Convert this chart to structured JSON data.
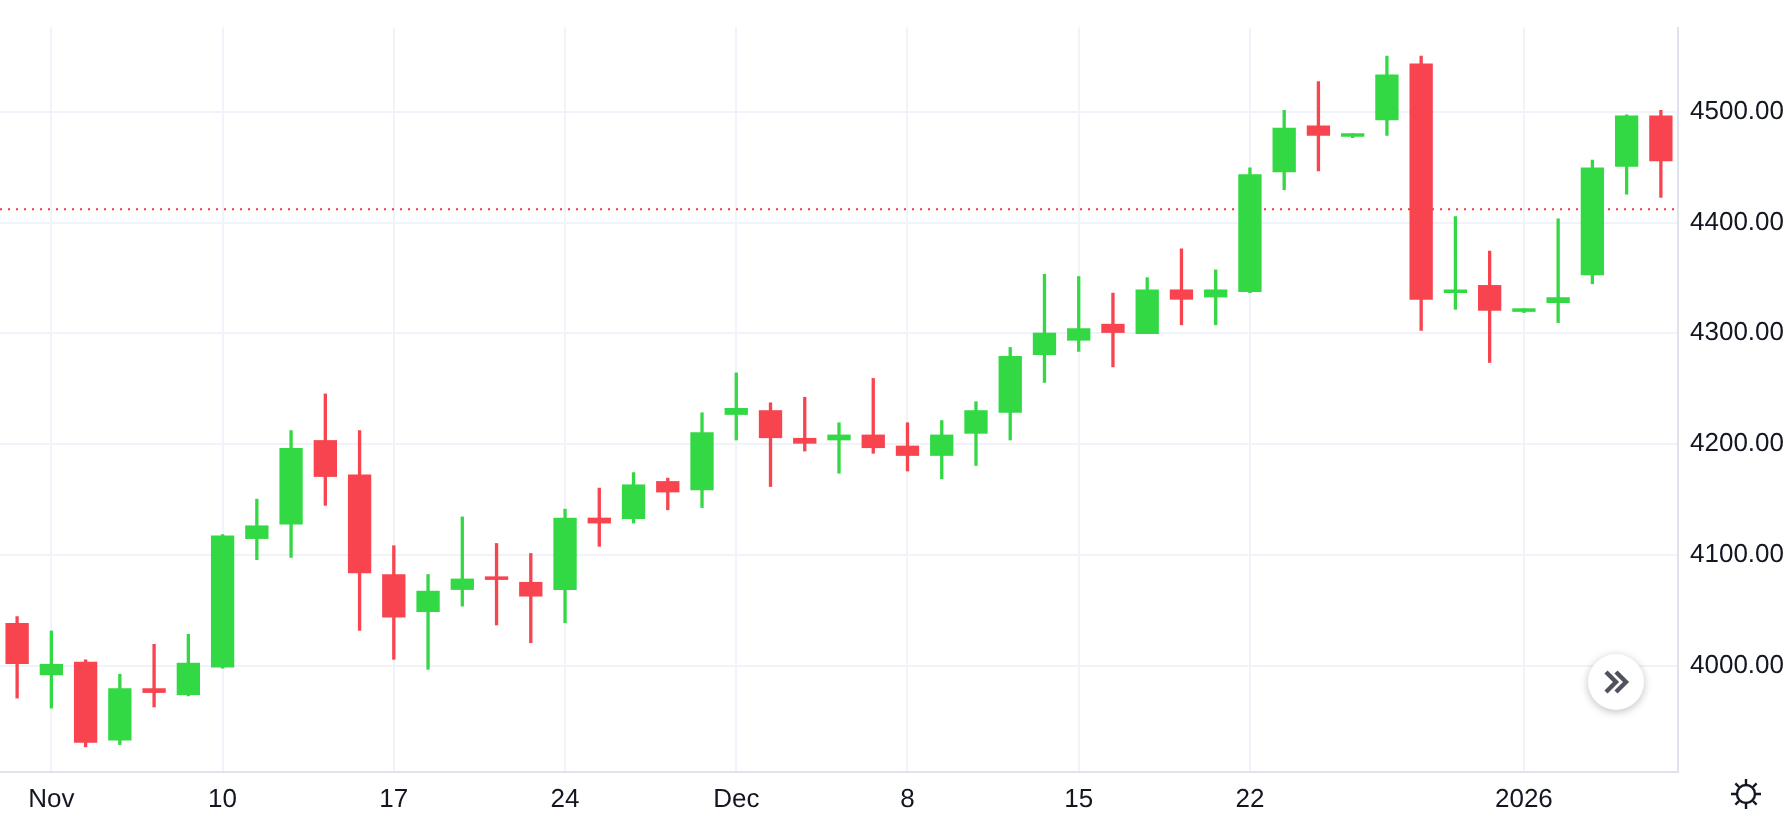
{
  "chart_data": {
    "type": "candlestick",
    "categories": [
      null,
      "Nov",
      null,
      null,
      null,
      null,
      "10",
      null,
      null,
      null,
      null,
      "17",
      null,
      null,
      null,
      null,
      "24",
      null,
      null,
      null,
      null,
      "Dec",
      null,
      null,
      null,
      null,
      "8",
      null,
      null,
      null,
      null,
      "15",
      null,
      null,
      null,
      null,
      "22",
      null,
      null,
      null,
      null,
      null,
      null,
      null,
      "2026",
      null,
      null,
      null,
      null
    ],
    "ohlc": [
      [
        4038,
        4044,
        3971,
        4002
      ],
      [
        3992,
        4031,
        3962,
        4001
      ],
      [
        4003,
        4005,
        3927,
        3931
      ],
      [
        3933,
        3992,
        3929,
        3979
      ],
      [
        3979,
        4019,
        3963,
        3976
      ],
      [
        3974,
        4028,
        3973,
        4002
      ],
      [
        3999,
        4118,
        3998,
        4117
      ],
      [
        4115,
        4150,
        4096,
        4126
      ],
      [
        4128,
        4212,
        4098,
        4196
      ],
      [
        4203,
        4245,
        4145,
        4171
      ],
      [
        4172,
        4212,
        4032,
        4084
      ],
      [
        4082,
        4108,
        4006,
        4044
      ],
      [
        4049,
        4082,
        3997,
        4067
      ],
      [
        4069,
        4134,
        4054,
        4078
      ],
      [
        4080,
        4110,
        4037,
        4078
      ],
      [
        4075,
        4101,
        4021,
        4063
      ],
      [
        4069,
        4141,
        4039,
        4133
      ],
      [
        4133,
        4160,
        4108,
        4129
      ],
      [
        4133,
        4174,
        4129,
        4163
      ],
      [
        4166,
        4169,
        4141,
        4157
      ],
      [
        4159,
        4228,
        4143,
        4210
      ],
      [
        4227,
        4264,
        4204,
        4232
      ],
      [
        4230,
        4237,
        4162,
        4206
      ],
      [
        4205,
        4242,
        4194,
        4201
      ],
      [
        4204,
        4219,
        4174,
        4208
      ],
      [
        4208,
        4259,
        4192,
        4197
      ],
      [
        4198,
        4219,
        4176,
        4190
      ],
      [
        4190,
        4221,
        4169,
        4208
      ],
      [
        4210,
        4238,
        4181,
        4230
      ],
      [
        4229,
        4287,
        4204,
        4279
      ],
      [
        4281,
        4353,
        4256,
        4300
      ],
      [
        4294,
        4351,
        4284,
        4304
      ],
      [
        4308,
        4336,
        4270,
        4301
      ],
      [
        4300,
        4350,
        4300,
        4339
      ],
      [
        4339,
        4376,
        4308,
        4331
      ],
      [
        4333,
        4357,
        4308,
        4339
      ],
      [
        4338,
        4449,
        4337,
        4443
      ],
      [
        4446,
        4501,
        4430,
        4485
      ],
      [
        4487,
        4527,
        4447,
        4479
      ],
      [
        4478,
        4480,
        4477,
        4480
      ],
      [
        4493,
        4550,
        4479,
        4533
      ],
      [
        4543,
        4550,
        4303,
        4331
      ],
      [
        4337,
        4405,
        4322,
        4339
      ],
      [
        4343,
        4374,
        4274,
        4321
      ],
      [
        4320,
        4322,
        4319,
        4322
      ],
      [
        4328,
        4403,
        4310,
        4332
      ],
      [
        4353,
        4456,
        4345,
        4449
      ],
      [
        4451,
        4497,
        4426,
        4496
      ],
      [
        4496,
        4501,
        4423,
        4456
      ]
    ],
    "colors": [
      "#f7444f",
      "#33d944",
      "#f7444f",
      "#33d944",
      "#f7444f",
      "#33d944",
      "#33d944",
      "#33d944",
      "#33d944",
      "#f7444f",
      "#f7444f",
      "#f7444f",
      "#33d944",
      "#33d944",
      "#f7444f",
      "#f7444f",
      "#33d944",
      "#f7444f",
      "#33d944",
      "#f7444f",
      "#33d944",
      "#33d944",
      "#f7444f",
      "#f7444f",
      "#33d944",
      "#f7444f",
      "#f7444f",
      "#33d944",
      "#33d944",
      "#33d944",
      "#33d944",
      "#33d944",
      "#f7444f",
      "#33d944",
      "#f7444f",
      "#33d944",
      "#33d944",
      "#33d944",
      "#f7444f",
      "#33d944",
      "#33d944",
      "#f7444f",
      "#33d944",
      "#f7444f",
      "#33d944",
      "#33d944",
      "#33d944",
      "#33d944",
      "#f7444f"
    ],
    "ylim": [
      3904,
      4576
    ],
    "yticks": [
      {
        "value": 4000,
        "label": "4000.00"
      },
      {
        "value": 4100,
        "label": "4100.00"
      },
      {
        "value": 4200,
        "label": "4200.00"
      },
      {
        "value": 4300,
        "label": "4300.00"
      },
      {
        "value": 4400,
        "label": "4400.00"
      },
      {
        "value": 4500,
        "label": "4500.00"
      }
    ],
    "grid": true,
    "ref_lines": [
      {
        "axis": "y",
        "value": 4412,
        "color": "#f23645",
        "line_style": "dotted"
      }
    ]
  }
}
